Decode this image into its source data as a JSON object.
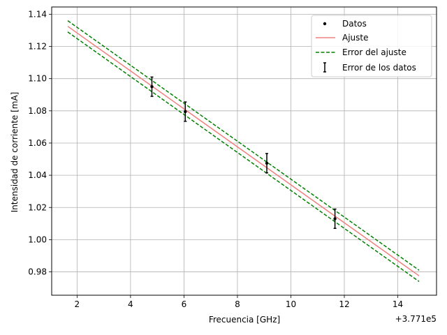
{
  "chart_data": {
    "type": "scatter",
    "xlabel": "Frecuencia [GHz]",
    "ylabel": "Intensidad de corriente [mA]",
    "x_offset_label": "+3.771e5",
    "xlim": [
      1.05,
      15.45
    ],
    "ylim": [
      0.9655,
      1.1445
    ],
    "xticks": [
      2,
      4,
      6,
      8,
      10,
      12,
      14
    ],
    "yticks": [
      0.98,
      1.0,
      1.02,
      1.04,
      1.06,
      1.08,
      1.1,
      1.12,
      1.14
    ],
    "xtick_labels": [
      "2",
      "4",
      "6",
      "8",
      "10",
      "12",
      "14"
    ],
    "ytick_labels": [
      "0.98",
      "1.00",
      "1.02",
      "1.04",
      "1.06",
      "1.08",
      "1.10",
      "1.12",
      "1.14"
    ],
    "grid": true,
    "legend_position": "top-right",
    "legend": {
      "datos": "Datos",
      "ajuste": "Ajuste",
      "error_ajuste": "Error del ajuste",
      "error_datos": "Error de los datos"
    },
    "colors": {
      "datos": "#000000",
      "ajuste": "#f08080",
      "error_ajuste": "#008000",
      "error_datos": "#000000",
      "grid": "#b0b0b0"
    },
    "data_points": [
      {
        "x": 4.8,
        "y": 1.095,
        "yerr": 0.006
      },
      {
        "x": 6.05,
        "y": 1.0795,
        "yerr": 0.006
      },
      {
        "x": 9.1,
        "y": 1.0475,
        "yerr": 0.006
      },
      {
        "x": 11.65,
        "y": 1.013,
        "yerr": 0.006
      }
    ],
    "fit": {
      "x_start": 1.65,
      "x_end": 14.8,
      "y_start": 1.1325,
      "y_end": 0.9775,
      "error_band": 0.0035
    }
  }
}
